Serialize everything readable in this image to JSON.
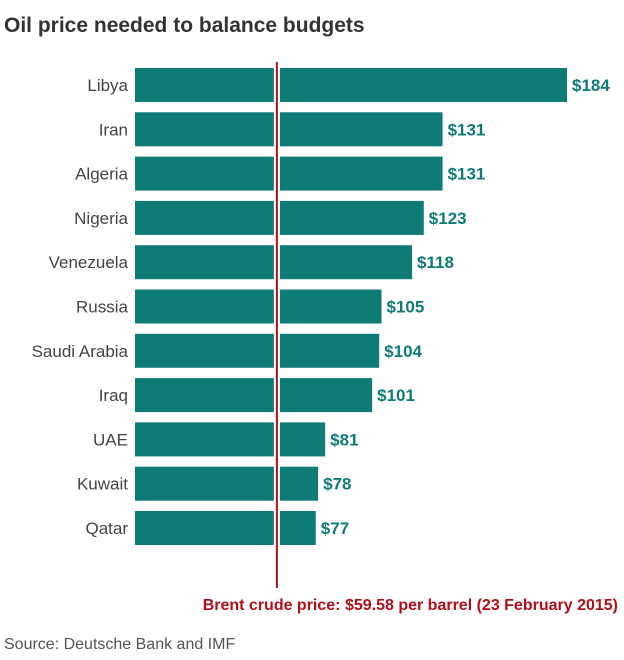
{
  "chart_data": {
    "type": "bar",
    "orientation": "horizontal",
    "title": "Oil price needed to balance budgets",
    "categories": [
      "Libya",
      "Iran",
      "Algeria",
      "Nigeria",
      "Venezuela",
      "Russia",
      "Saudi Arabia",
      "Iraq",
      "UAE",
      "Kuwait",
      "Qatar"
    ],
    "values": [
      184,
      131,
      131,
      123,
      118,
      105,
      104,
      101,
      81,
      78,
      77
    ],
    "data_labels": [
      "$184",
      "$131",
      "$131",
      "$123",
      "$118",
      "$105",
      "$104",
      "$101",
      "$81",
      "$78",
      "$77"
    ],
    "reference_line": {
      "value": 59.58,
      "label": "Brent crude price: $59.58 per barrel (23 February 2015)",
      "color": "#b0101a"
    },
    "bar_color": "#0f7b77",
    "source": "Source: Deutsche Bank and IMF",
    "grid": false
  }
}
